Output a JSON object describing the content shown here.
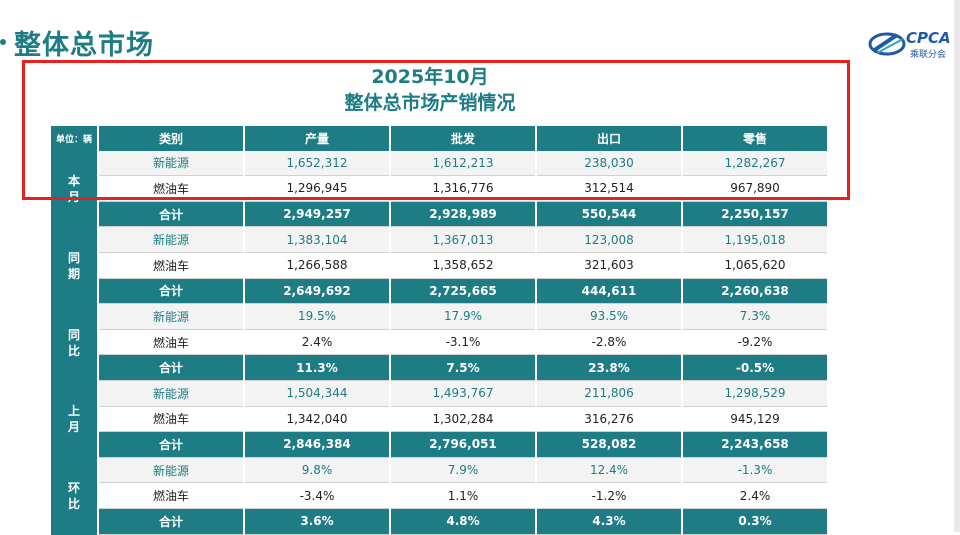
{
  "header": {
    "title": "整体总市场"
  },
  "logo": {
    "text": "CPCA",
    "subtext": "乘联分会"
  },
  "report": {
    "year_title": "2025年10月",
    "subtitle": "整体总市场产销情况"
  },
  "table": {
    "unit_label": "单位：辆",
    "columns": [
      "类别",
      "产量",
      "批发",
      "出口",
      "零售"
    ],
    "groups": [
      {
        "label": "本月",
        "rows": [
          {
            "type": "nev",
            "category": "新能源",
            "values": [
              "1,652,312",
              "1,612,213",
              "238,030",
              "1,282,267"
            ]
          },
          {
            "type": "ice",
            "category": "燃油车",
            "values": [
              "1,296,945",
              "1,316,776",
              "312,514",
              "967,890"
            ]
          },
          {
            "type": "tot",
            "category": "合计",
            "values": [
              "2,949,257",
              "2,928,989",
              "550,544",
              "2,250,157"
            ]
          }
        ]
      },
      {
        "label": "同期",
        "rows": [
          {
            "type": "nev",
            "category": "新能源",
            "values": [
              "1,383,104",
              "1,367,013",
              "123,008",
              "1,195,018"
            ]
          },
          {
            "type": "ice",
            "category": "燃油车",
            "values": [
              "1,266,588",
              "1,358,652",
              "321,603",
              "1,065,620"
            ]
          },
          {
            "type": "tot",
            "category": "合计",
            "values": [
              "2,649,692",
              "2,725,665",
              "444,611",
              "2,260,638"
            ]
          }
        ]
      },
      {
        "label": "同比",
        "rows": [
          {
            "type": "nev",
            "category": "新能源",
            "values": [
              "19.5%",
              "17.9%",
              "93.5%",
              "7.3%"
            ]
          },
          {
            "type": "ice",
            "category": "燃油车",
            "values": [
              "2.4%",
              "-3.1%",
              "-2.8%",
              "-9.2%"
            ]
          },
          {
            "type": "tot",
            "category": "合计",
            "values": [
              "11.3%",
              "7.5%",
              "23.8%",
              "-0.5%"
            ]
          }
        ]
      },
      {
        "label": "上月",
        "rows": [
          {
            "type": "nev",
            "category": "新能源",
            "values": [
              "1,504,344",
              "1,493,767",
              "211,806",
              "1,298,529"
            ]
          },
          {
            "type": "ice",
            "category": "燃油车",
            "values": [
              "1,342,040",
              "1,302,284",
              "316,276",
              "945,129"
            ]
          },
          {
            "type": "tot",
            "category": "合计",
            "values": [
              "2,846,384",
              "2,796,051",
              "528,082",
              "2,243,658"
            ]
          }
        ]
      },
      {
        "label": "环比",
        "rows": [
          {
            "type": "nev",
            "category": "新能源",
            "values": [
              "9.8%",
              "7.9%",
              "12.4%",
              "-1.3%"
            ]
          },
          {
            "type": "ice",
            "category": "燃油车",
            "values": [
              "-3.4%",
              "1.1%",
              "-1.2%",
              "2.4%"
            ]
          },
          {
            "type": "tot",
            "category": "合计",
            "values": [
              "3.6%",
              "4.8%",
              "4.3%",
              "0.3%"
            ]
          }
        ]
      }
    ]
  },
  "colors": {
    "accent": "#1d7c84",
    "highlight": "#e8211f",
    "logo_blue": "#1f5aa6"
  }
}
